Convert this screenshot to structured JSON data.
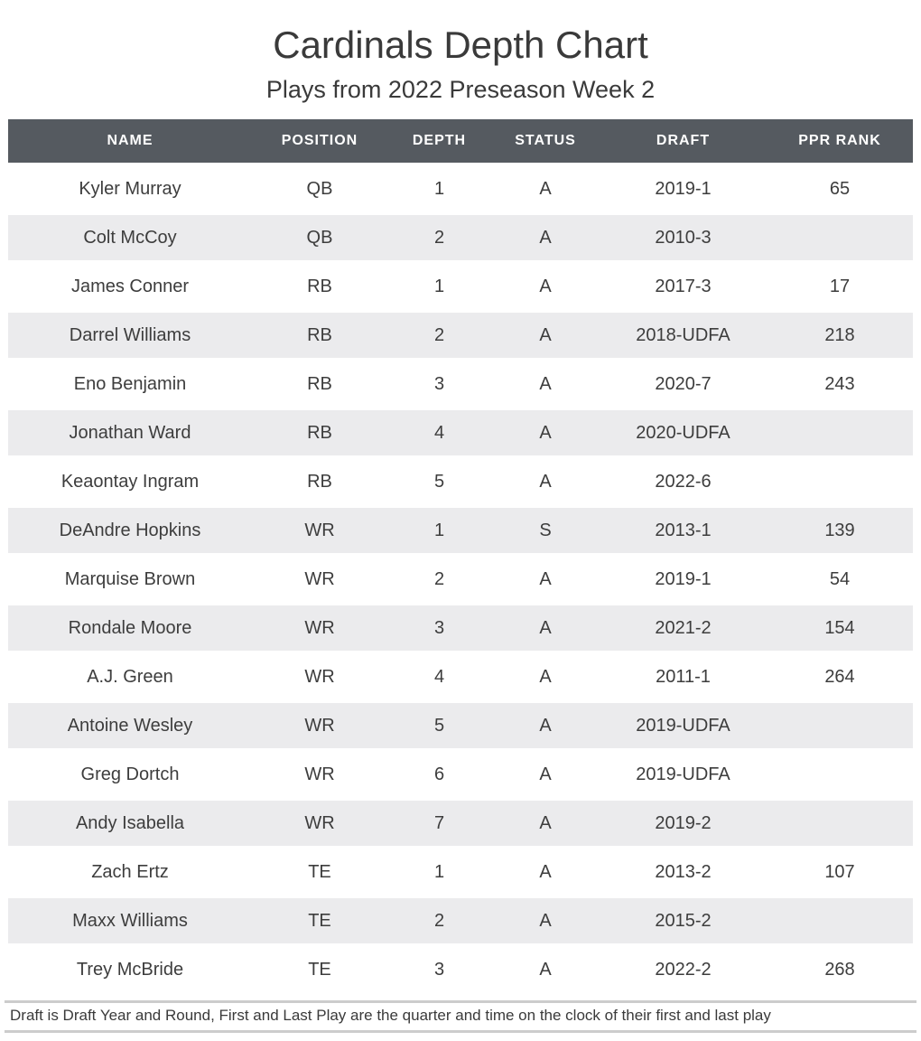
{
  "header": {
    "title": "Cardinals Depth Chart",
    "subtitle": "Plays from 2022 Preseason Week 2"
  },
  "chart_data": {
    "type": "table",
    "title": "Cardinals Depth Chart",
    "subtitle": "Plays from 2022 Preseason Week 2",
    "columns": [
      "NAME",
      "POSITION",
      "DEPTH",
      "STATUS",
      "DRAFT",
      "PPR RANK"
    ],
    "rows": [
      [
        "Kyler Murray",
        "QB",
        "1",
        "A",
        "2019-1",
        "65"
      ],
      [
        "Colt McCoy",
        "QB",
        "2",
        "A",
        "2010-3",
        ""
      ],
      [
        "James Conner",
        "RB",
        "1",
        "A",
        "2017-3",
        "17"
      ],
      [
        "Darrel Williams",
        "RB",
        "2",
        "A",
        "2018-UDFA",
        "218"
      ],
      [
        "Eno Benjamin",
        "RB",
        "3",
        "A",
        "2020-7",
        "243"
      ],
      [
        "Jonathan Ward",
        "RB",
        "4",
        "A",
        "2020-UDFA",
        ""
      ],
      [
        "Keaontay Ingram",
        "RB",
        "5",
        "A",
        "2022-6",
        ""
      ],
      [
        "DeAndre Hopkins",
        "WR",
        "1",
        "S",
        "2013-1",
        "139"
      ],
      [
        "Marquise Brown",
        "WR",
        "2",
        "A",
        "2019-1",
        "54"
      ],
      [
        "Rondale Moore",
        "WR",
        "3",
        "A",
        "2021-2",
        "154"
      ],
      [
        "A.J. Green",
        "WR",
        "4",
        "A",
        "2011-1",
        "264"
      ],
      [
        "Antoine Wesley",
        "WR",
        "5",
        "A",
        "2019-UDFA",
        ""
      ],
      [
        "Greg Dortch",
        "WR",
        "6",
        "A",
        "2019-UDFA",
        ""
      ],
      [
        "Andy Isabella",
        "WR",
        "7",
        "A",
        "2019-2",
        ""
      ],
      [
        "Zach Ertz",
        "TE",
        "1",
        "A",
        "2013-2",
        "107"
      ],
      [
        "Maxx Williams",
        "TE",
        "2",
        "A",
        "2015-2",
        ""
      ],
      [
        "Trey McBride",
        "TE",
        "3",
        "A",
        "2022-2",
        "268"
      ]
    ],
    "row_striping": "alternate white / light gray",
    "legend_position": "none",
    "grid": false
  },
  "footer": {
    "note": "Draft is Draft Year and Round, First and Last Play are the quarter and time on the clock of their first and last play"
  },
  "colors": {
    "header_bg": "#555a60",
    "row_alt_bg": "#ebebed",
    "title_text": "#3a3a3a",
    "cell_text": "#3d3d3d",
    "header_text": "#ffffff",
    "footer_border": "#cccccc"
  }
}
